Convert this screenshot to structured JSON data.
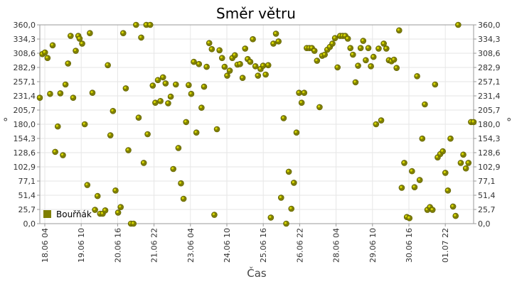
{
  "colors": {
    "marker": "#7f7f00",
    "marker_highlight": "#d6d600",
    "grid": "#e6e6e6",
    "axis": "#999999"
  },
  "chart_data": {
    "type": "scatter",
    "title": "Směr větru",
    "xlabel": "Čas",
    "ylabel": "°",
    "x_tick_labels": [
      "18.06 04",
      "19.06 10",
      "20.06 16",
      "21.06 22",
      "23.06 04",
      "24.06 10",
      "25.06 16",
      "26.06 22",
      "28.06 04",
      "29.06 10",
      "30.06 16",
      "01.07 22"
    ],
    "y_tick_labels": [
      "0,0",
      "25,7",
      "51,4",
      "77,1",
      "102,9",
      "128,6",
      "154,3",
      "180,0",
      "205,7",
      "231,4",
      "257,1",
      "282,9",
      "308,6",
      "334,3",
      "360,0"
    ],
    "ylim": [
      0,
      360
    ],
    "grid": true,
    "legend_position": "bottom-left",
    "series": [
      {
        "name": "Bouřňák",
        "x_unit": "hours since 18.06 04:00 (estimated)",
        "points": [
          [
            0,
            228
          ],
          [
            2,
            307
          ],
          [
            4,
            310
          ],
          [
            6,
            300
          ],
          [
            8,
            235
          ],
          [
            10,
            323
          ],
          [
            12,
            130
          ],
          [
            14,
            176
          ],
          [
            16,
            236
          ],
          [
            18,
            124
          ],
          [
            20,
            252
          ],
          [
            22,
            290
          ],
          [
            24,
            340
          ],
          [
            26,
            228
          ],
          [
            28,
            313
          ],
          [
            30,
            340
          ],
          [
            31,
            335
          ],
          [
            33,
            326
          ],
          [
            35,
            180
          ],
          [
            37,
            70
          ],
          [
            39,
            345
          ],
          [
            41,
            237
          ],
          [
            43,
            25
          ],
          [
            45,
            50
          ],
          [
            47,
            18
          ],
          [
            49,
            18
          ],
          [
            51,
            24
          ],
          [
            53,
            287
          ],
          [
            55,
            160
          ],
          [
            57,
            204
          ],
          [
            59,
            60
          ],
          [
            61,
            20
          ],
          [
            63,
            30
          ],
          [
            65,
            345
          ],
          [
            67,
            245
          ],
          [
            69,
            133
          ],
          [
            71,
            0
          ],
          [
            73,
            0
          ],
          [
            75,
            360
          ],
          [
            77,
            192
          ],
          [
            79,
            337
          ],
          [
            81,
            110
          ],
          [
            83,
            360
          ],
          [
            84,
            162
          ],
          [
            86,
            360
          ],
          [
            88,
            250
          ],
          [
            90,
            219
          ],
          [
            92,
            260
          ],
          [
            94,
            222
          ],
          [
            96,
            265
          ],
          [
            98,
            254
          ],
          [
            100,
            218
          ],
          [
            102,
            230
          ],
          [
            104,
            99
          ],
          [
            106,
            252
          ],
          [
            108,
            137
          ],
          [
            110,
            73
          ],
          [
            112,
            45
          ],
          [
            114,
            184
          ],
          [
            116,
            251
          ],
          [
            118,
            235
          ],
          [
            120,
            293
          ],
          [
            122,
            165
          ],
          [
            124,
            289
          ],
          [
            126,
            210
          ],
          [
            128,
            248
          ],
          [
            130,
            284
          ],
          [
            132,
            327
          ],
          [
            134,
            316
          ],
          [
            136,
            16
          ],
          [
            138,
            171
          ],
          [
            140,
            314
          ],
          [
            142,
            300
          ],
          [
            144,
            284
          ],
          [
            146,
            268
          ],
          [
            148,
            277
          ],
          [
            150,
            300
          ],
          [
            152,
            305
          ],
          [
            154,
            288
          ],
          [
            156,
            289
          ],
          [
            158,
            264
          ],
          [
            160,
            317
          ],
          [
            162,
            298
          ],
          [
            164,
            293
          ],
          [
            166,
            334
          ],
          [
            168,
            285
          ],
          [
            170,
            268
          ],
          [
            172,
            280
          ],
          [
            174,
            286
          ],
          [
            176,
            270
          ],
          [
            178,
            287
          ],
          [
            180,
            11
          ],
          [
            182,
            326
          ],
          [
            184,
            344
          ],
          [
            186,
            330
          ],
          [
            188,
            47
          ],
          [
            190,
            191
          ],
          [
            192,
            0
          ],
          [
            194,
            94
          ],
          [
            196,
            27
          ],
          [
            198,
            74
          ],
          [
            200,
            165
          ],
          [
            202,
            237
          ],
          [
            204,
            219
          ],
          [
            206,
            237
          ],
          [
            208,
            318
          ],
          [
            210,
            318
          ],
          [
            212,
            318
          ],
          [
            214,
            313
          ],
          [
            216,
            295
          ],
          [
            218,
            211
          ],
          [
            220,
            304
          ],
          [
            222,
            306
          ],
          [
            224,
            315
          ],
          [
            226,
            320
          ],
          [
            228,
            326
          ],
          [
            230,
            336
          ],
          [
            232,
            283
          ],
          [
            234,
            340
          ],
          [
            236,
            340
          ],
          [
            238,
            340
          ],
          [
            240,
            335
          ],
          [
            242,
            318
          ],
          [
            244,
            306
          ],
          [
            246,
            256
          ],
          [
            248,
            286
          ],
          [
            250,
            318
          ],
          [
            252,
            331
          ],
          [
            254,
            296
          ],
          [
            256,
            318
          ],
          [
            258,
            285
          ],
          [
            260,
            302
          ],
          [
            262,
            180
          ],
          [
            264,
            317
          ],
          [
            266,
            187
          ],
          [
            268,
            326
          ],
          [
            270,
            317
          ],
          [
            272,
            296
          ],
          [
            274,
            294
          ],
          [
            276,
            297
          ],
          [
            278,
            282
          ],
          [
            280,
            350
          ],
          [
            282,
            65
          ],
          [
            284,
            110
          ],
          [
            286,
            12
          ],
          [
            288,
            10
          ],
          [
            290,
            95
          ],
          [
            292,
            66
          ],
          [
            294,
            267
          ],
          [
            296,
            79
          ],
          [
            298,
            154
          ],
          [
            300,
            216
          ],
          [
            302,
            25
          ],
          [
            304,
            30
          ],
          [
            306,
            25
          ],
          [
            308,
            252
          ],
          [
            310,
            120
          ],
          [
            312,
            126
          ],
          [
            314,
            131
          ],
          [
            316,
            92
          ],
          [
            318,
            60
          ],
          [
            320,
            154
          ],
          [
            322,
            31
          ],
          [
            324,
            14
          ],
          [
            326,
            360
          ],
          [
            328,
            110
          ],
          [
            330,
            125
          ],
          [
            332,
            100
          ],
          [
            334,
            110
          ],
          [
            336,
            184
          ],
          [
            338,
            184
          ]
        ]
      }
    ]
  }
}
